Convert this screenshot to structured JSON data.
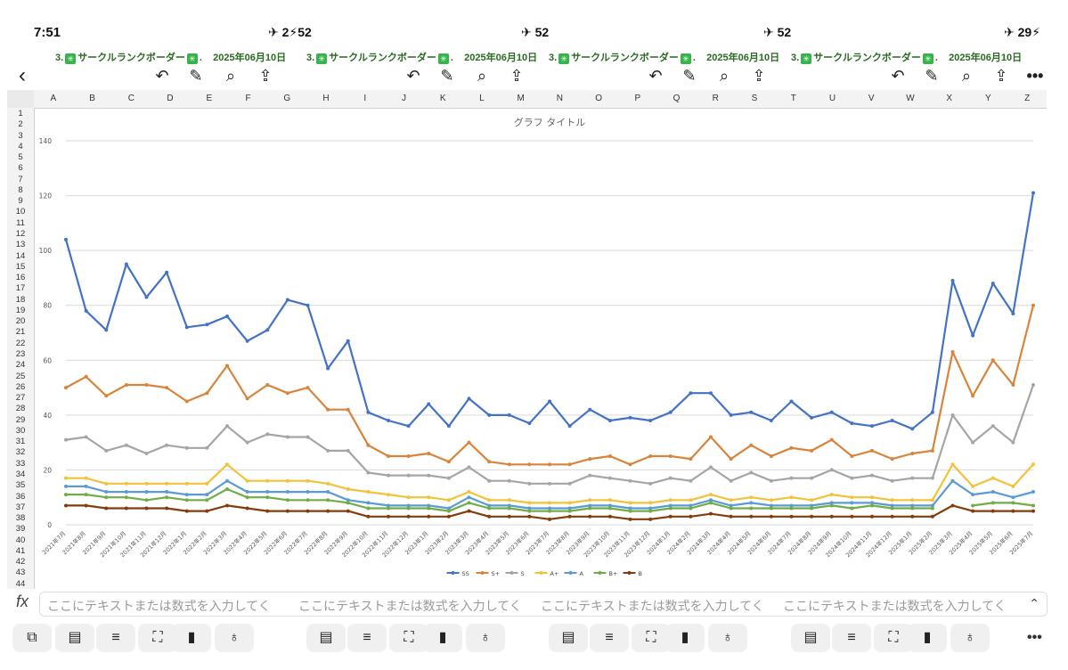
{
  "status_bar": {
    "time": "7:51",
    "segments": [
      "✈ 2⚡52",
      "✈ 52",
      "✈ 52",
      "✈ 29⚡"
    ]
  },
  "document": {
    "title_prefix": "3.",
    "title_main": "サークルランクボーダー",
    "title_suffix": ".",
    "date": "2025年06月10日"
  },
  "toolbar": {
    "back_icon": "chevron-left-icon",
    "undo_icon": "undo-icon",
    "markup_icon": "markup-pen-icon",
    "search_icon": "search-icon",
    "share_icon": "share-icon",
    "more_icon": "more-icon"
  },
  "columns": [
    "A",
    "B",
    "C",
    "D",
    "E",
    "F",
    "G",
    "H",
    "I",
    "J",
    "K",
    "L",
    "M",
    "N",
    "O",
    "P",
    "Q",
    "R",
    "S",
    "T",
    "U",
    "V",
    "W",
    "X",
    "Y",
    "Z"
  ],
  "rows": [
    "1",
    "2",
    "3",
    "4",
    "5",
    "6",
    "7",
    "8",
    "9",
    "10",
    "11",
    "12",
    "13",
    "14",
    "15",
    "16",
    "17",
    "18",
    "19",
    "20",
    "21",
    "22",
    "23",
    "24",
    "25",
    "26",
    "27",
    "28",
    "29",
    "30",
    "31",
    "32",
    "33",
    "34",
    "35",
    "36",
    "37",
    "38",
    "39",
    "40",
    "41",
    "42",
    "43",
    "44"
  ],
  "formula_bar": {
    "fx_label": "fx",
    "placeholder": "ここにテキストまたは数式を入力してく",
    "segments": [
      "ここにテキストまたは数式を入力してく",
      "ここにテキストまたは数式を入力してく",
      "ここにテキストまたは数式を入力してく",
      "ここにテキストまたは数式を入力してく"
    ]
  },
  "bottom_toolbar": {
    "buttons": [
      "sheets-icon",
      "table-icon",
      "filter-icon",
      "fill-icon",
      "format-brush-icon",
      "lightbulb-icon"
    ]
  },
  "chart_data": {
    "type": "line",
    "title": "グラフ タイトル",
    "ylim": [
      0,
      140
    ],
    "yticks": [
      0,
      20,
      40,
      60,
      80,
      100,
      120,
      140
    ],
    "grid": true,
    "legend_position": "bottom",
    "categories": [
      "2021年7月",
      "2021年8月",
      "2021年9月",
      "2021年10月",
      "2021年11月",
      "2021年12月",
      "2022年1月",
      "2022年2月",
      "2022年3月",
      "2022年4月",
      "2022年5月",
      "2022年6月",
      "2022年7月",
      "2022年8月",
      "2022年9月",
      "2022年10月",
      "2022年11月",
      "2022年12月",
      "2023年1月",
      "2023年2月",
      "2023年3月",
      "2023年4月",
      "2023年5月",
      "2023年6月",
      "2023年7月",
      "2023年8月",
      "2023年9月",
      "2023年10月",
      "2023年11月",
      "2023年12月",
      "2024年1月",
      "2024年2月",
      "2024年3月",
      "2024年4月",
      "2024年5月",
      "2024年6月",
      "2024年7月",
      "2024年8月",
      "2024年9月",
      "2024年10月",
      "2024年11月",
      "2024年12月",
      "2025年1月",
      "2025年2月",
      "2025年3月",
      "2025年4月",
      "2025年5月",
      "2025年6月",
      "2025年7月"
    ],
    "series": [
      {
        "name": "SS",
        "color": "#4472c4",
        "values": [
          104,
          78,
          71,
          95,
          83,
          92,
          72,
          73,
          76,
          67,
          71,
          82,
          80,
          57,
          67,
          41,
          38,
          36,
          44,
          36,
          46,
          40,
          40,
          37,
          45,
          36,
          42,
          38,
          39,
          38,
          41,
          48,
          48,
          40,
          41,
          38,
          45,
          39,
          41,
          37,
          36,
          38,
          35,
          41,
          89,
          69,
          88,
          77,
          121
        ]
      },
      {
        "name": "S+",
        "color": "#d9843b",
        "values": [
          50,
          54,
          47,
          51,
          51,
          50,
          45,
          48,
          58,
          46,
          51,
          48,
          50,
          42,
          42,
          29,
          25,
          25,
          26,
          23,
          30,
          23,
          22,
          22,
          22,
          22,
          24,
          25,
          22,
          25,
          25,
          24,
          32,
          24,
          29,
          25,
          28,
          27,
          31,
          25,
          27,
          24,
          26,
          27,
          63,
          47,
          60,
          51,
          80
        ]
      },
      {
        "name": "S",
        "color": "#a5a5a5",
        "values": [
          31,
          32,
          27,
          29,
          26,
          29,
          28,
          28,
          36,
          30,
          33,
          32,
          32,
          27,
          27,
          19,
          18,
          18,
          18,
          17,
          21,
          16,
          16,
          15,
          15,
          15,
          18,
          17,
          16,
          15,
          17,
          16,
          21,
          16,
          19,
          16,
          17,
          17,
          20,
          17,
          18,
          16,
          17,
          17,
          40,
          30,
          36,
          30,
          51
        ]
      },
      {
        "name": "A+",
        "color": "#f2c23b",
        "values": [
          17,
          17,
          15,
          15,
          15,
          15,
          15,
          15,
          22,
          16,
          16,
          16,
          16,
          15,
          13,
          12,
          11,
          10,
          10,
          9,
          12,
          9,
          9,
          8,
          8,
          8,
          9,
          9,
          8,
          8,
          9,
          9,
          11,
          9,
          10,
          9,
          10,
          9,
          11,
          10,
          10,
          9,
          9,
          9,
          22,
          14,
          17,
          14,
          22
        ]
      },
      {
        "name": "A",
        "color": "#5b9bd5",
        "values": [
          14,
          14,
          12,
          12,
          12,
          12,
          11,
          11,
          16,
          12,
          12,
          12,
          12,
          12,
          9,
          8,
          7,
          7,
          7,
          6,
          10,
          7,
          7,
          6,
          6,
          6,
          7,
          7,
          6,
          6,
          7,
          7,
          9,
          7,
          8,
          7,
          7,
          7,
          8,
          8,
          8,
          7,
          7,
          7,
          16,
          11,
          12,
          10,
          12
        ]
      },
      {
        "name": "B+",
        "color": "#70ad47",
        "values": [
          11,
          11,
          10,
          10,
          9,
          10,
          9,
          9,
          13,
          10,
          10,
          9,
          9,
          9,
          8,
          6,
          6,
          6,
          6,
          5,
          8,
          6,
          6,
          5,
          5,
          5,
          6,
          6,
          5,
          5,
          6,
          6,
          8,
          6,
          6,
          6,
          6,
          6,
          7,
          6,
          7,
          6,
          6,
          6,
          null,
          7,
          8,
          8,
          7
        ]
      },
      {
        "name": "B",
        "color": "#843c0c",
        "values": [
          7,
          7,
          6,
          6,
          6,
          6,
          5,
          5,
          7,
          6,
          5,
          5,
          5,
          5,
          5,
          3,
          3,
          3,
          3,
          3,
          5,
          3,
          3,
          3,
          2,
          3,
          3,
          3,
          2,
          2,
          3,
          3,
          4,
          3,
          3,
          3,
          3,
          3,
          3,
          3,
          3,
          3,
          3,
          3,
          7,
          5,
          5,
          5,
          5
        ]
      }
    ]
  }
}
